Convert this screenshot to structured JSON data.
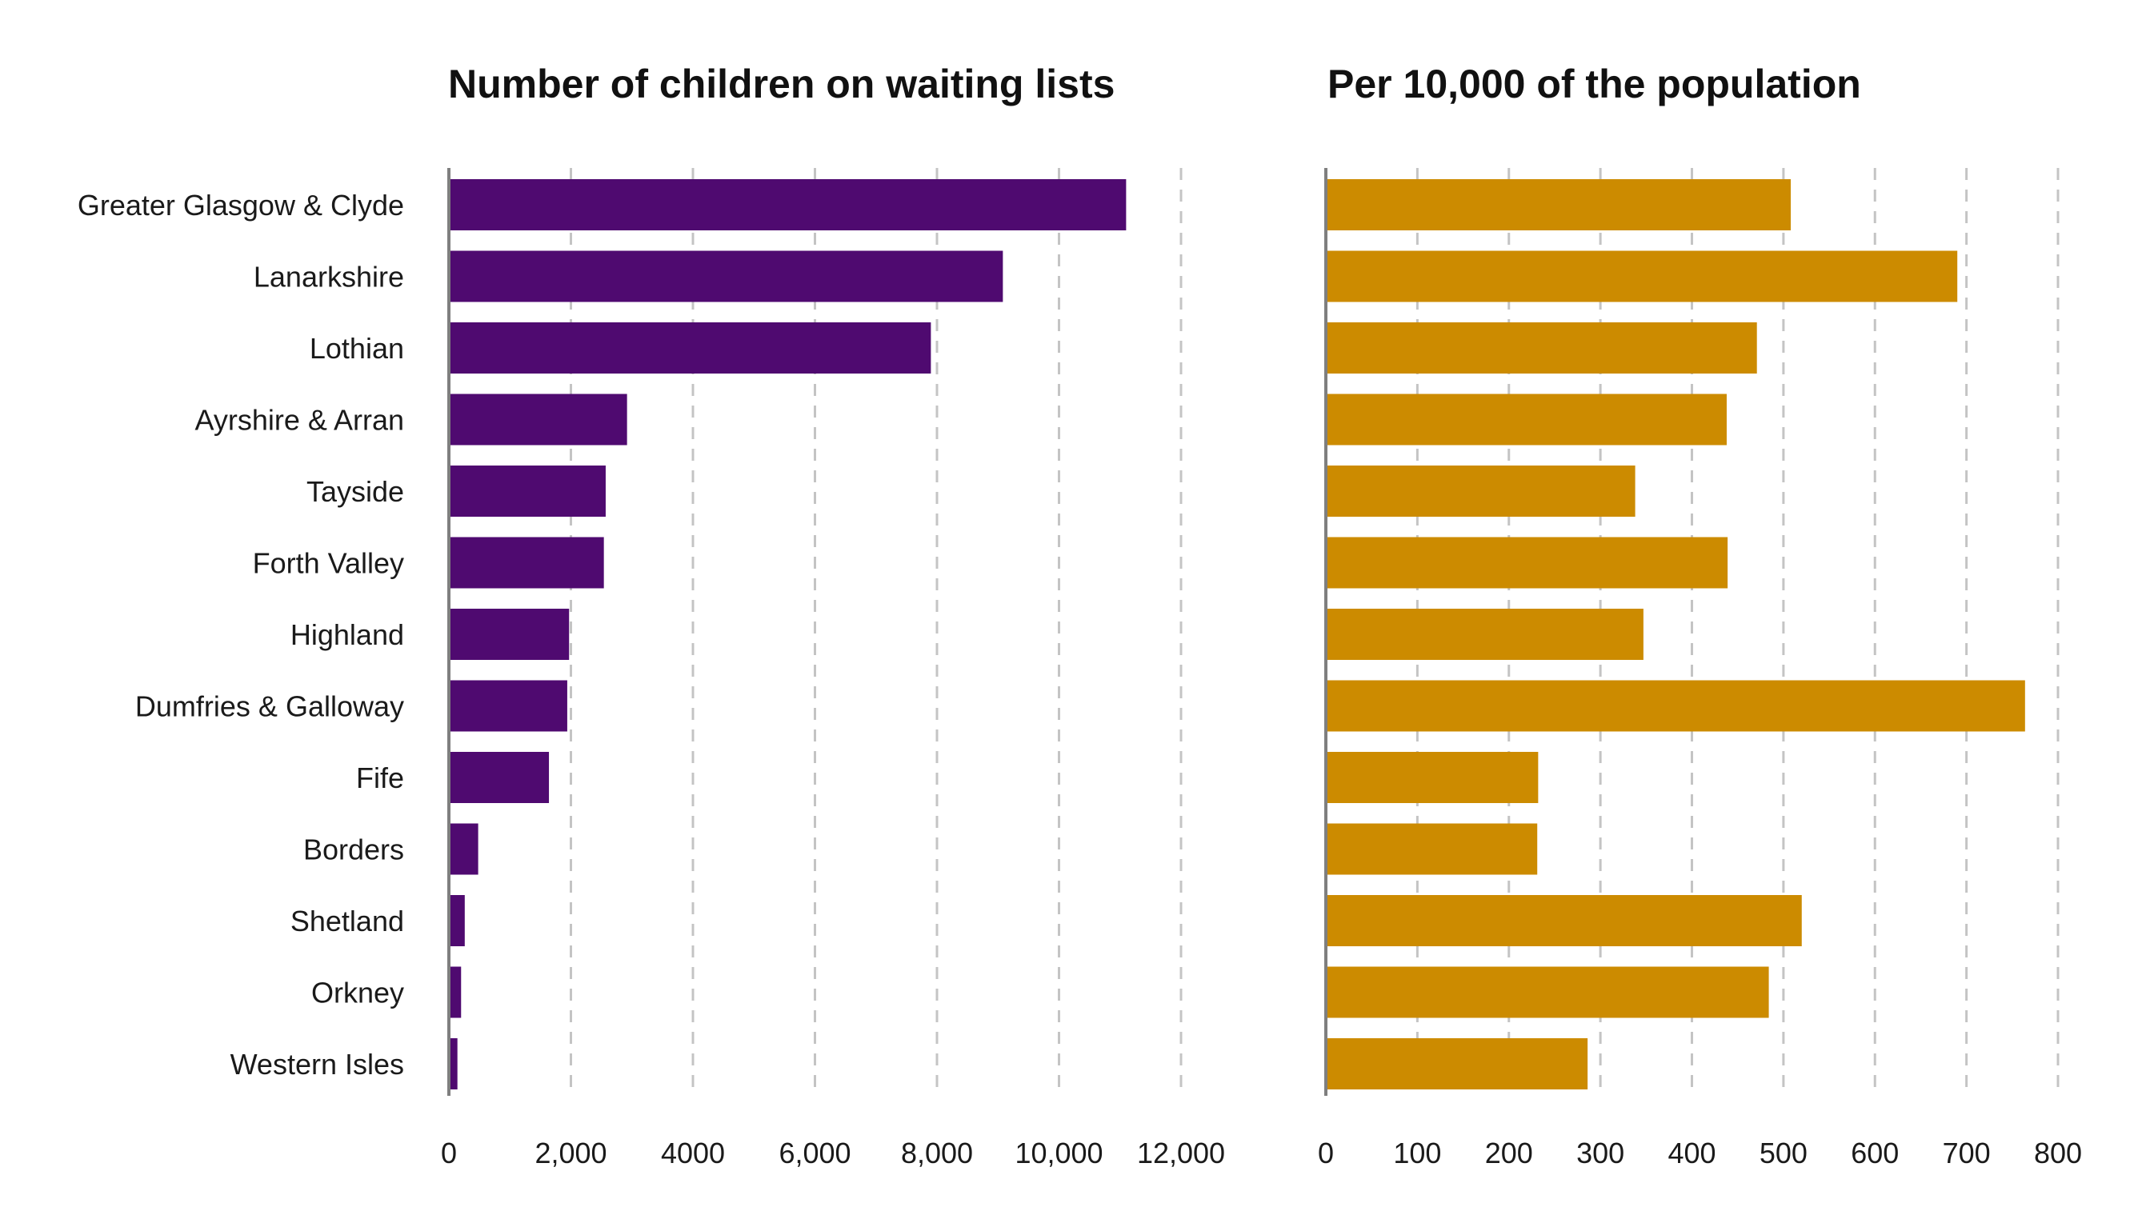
{
  "colors": {
    "left_bar": "#4f0a70",
    "right_bar": "#cc8b00"
  },
  "chart_data": [
    {
      "type": "bar",
      "orientation": "horizontal",
      "title": "Number of children on waiting lists",
      "categories": [
        "Greater Glasgow & Clyde",
        "Lanarkshire",
        "Lothian",
        "Ayrshire & Arran",
        "Tayside",
        "Forth Valley",
        "Highland",
        "Dumfries & Galloway",
        "Fife",
        "Borders",
        "Shetland",
        "Orkney",
        "Western Isles"
      ],
      "values": [
        11100,
        9080,
        7900,
        2920,
        2570,
        2540,
        1970,
        1940,
        1640,
        480,
        260,
        200,
        140
      ],
      "xlim": [
        0,
        12000
      ],
      "ticks": [
        0,
        2000,
        4000,
        6000,
        8000,
        10000,
        12000
      ],
      "tick_labels": [
        "0",
        "2,000",
        "4000",
        "6,000",
        "8,000",
        "10,000",
        "12,000"
      ],
      "grid": true
    },
    {
      "type": "bar",
      "orientation": "horizontal",
      "title": "Per 10,000 of the population",
      "categories": [
        "Greater Glasgow & Clyde",
        "Lanarkshire",
        "Lothian",
        "Ayrshire & Arran",
        "Tayside",
        "Forth Valley",
        "Highland",
        "Dumfries & Galloway",
        "Fife",
        "Borders",
        "Shetland",
        "Orkney",
        "Western Isles"
      ],
      "values": [
        508,
        690,
        471,
        438,
        338,
        439,
        347,
        764,
        232,
        231,
        520,
        484,
        286
      ],
      "xlim": [
        0,
        800
      ],
      "ticks": [
        0,
        100,
        200,
        300,
        400,
        500,
        600,
        700,
        800
      ],
      "tick_labels": [
        "0",
        "100",
        "200",
        "300",
        "400",
        "500",
        "600",
        "700",
        "800"
      ],
      "grid": true
    }
  ]
}
